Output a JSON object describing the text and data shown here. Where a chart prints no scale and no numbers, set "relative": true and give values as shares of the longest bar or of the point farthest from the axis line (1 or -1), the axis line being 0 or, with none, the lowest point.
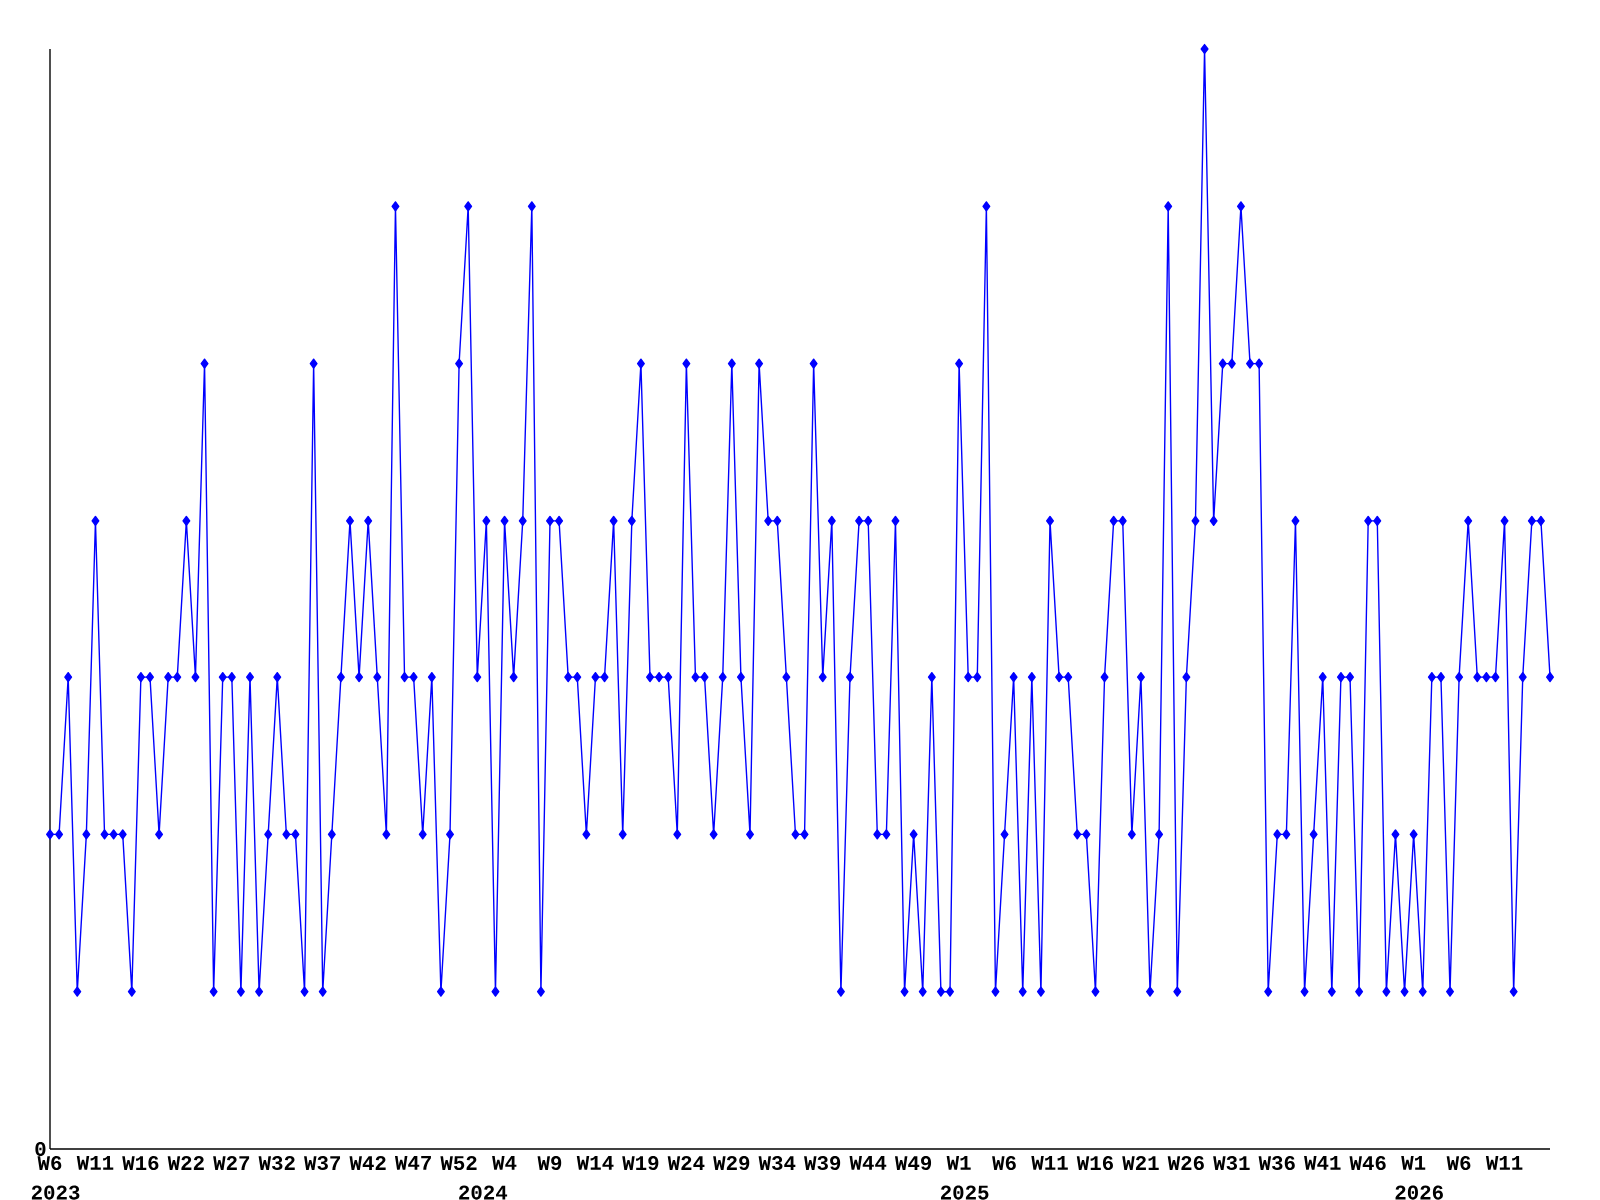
{
  "chart_data": {
    "type": "line",
    "relative": true,
    "color": "#0000ff",
    "marker": "diamond",
    "line_style": "solid",
    "grid": false,
    "categories": [
      "W6",
      null,
      null,
      null,
      null,
      "W11",
      null,
      null,
      null,
      null,
      "W16",
      null,
      null,
      null,
      null,
      "W22",
      null,
      null,
      null,
      null,
      "W27",
      null,
      null,
      null,
      null,
      "W32",
      null,
      null,
      null,
      null,
      "W37",
      null,
      null,
      null,
      null,
      "W42",
      null,
      null,
      null,
      null,
      "W47",
      null,
      null,
      null,
      null,
      "W52",
      null,
      null,
      null,
      null,
      "W4",
      null,
      null,
      null,
      null,
      "W9",
      null,
      null,
      null,
      null,
      "W14",
      null,
      null,
      null,
      null,
      "W19",
      null,
      null,
      null,
      null,
      "W24",
      null,
      null,
      null,
      null,
      "W29",
      null,
      null,
      null,
      null,
      "W34",
      null,
      null,
      null,
      null,
      "W39",
      null,
      null,
      null,
      null,
      "W44",
      null,
      null,
      null,
      null,
      "W49",
      null,
      null,
      null,
      null,
      "W1",
      null,
      null,
      null,
      null,
      "W6",
      null,
      null,
      null,
      null,
      "W11",
      null,
      null,
      null,
      null,
      "W16",
      null,
      null,
      null,
      null,
      "W21",
      null,
      null,
      null,
      null,
      "W26",
      null,
      null,
      null,
      null,
      "W31",
      null,
      null,
      null,
      null,
      "W36",
      null,
      null,
      null,
      null,
      "W41",
      null,
      null,
      null,
      null,
      "W46",
      null,
      null,
      null,
      null,
      "W1",
      null,
      null,
      null,
      null,
      "W6",
      null,
      null,
      null,
      null,
      "W11",
      null,
      null,
      null,
      null,
      null
    ],
    "values": [
      0.286,
      0.286,
      0.429,
      0.143,
      0.286,
      0.571,
      0.286,
      0.286,
      0.286,
      0.143,
      0.429,
      0.429,
      0.286,
      0.429,
      0.429,
      0.571,
      0.429,
      0.714,
      0.143,
      0.429,
      0.429,
      0.143,
      0.429,
      0.143,
      0.286,
      0.429,
      0.286,
      0.286,
      0.143,
      0.714,
      0.143,
      0.286,
      0.429,
      0.571,
      0.429,
      0.571,
      0.429,
      0.286,
      0.857,
      0.429,
      0.429,
      0.286,
      0.429,
      0.143,
      0.286,
      0.714,
      0.857,
      0.429,
      0.571,
      0.143,
      0.571,
      0.429,
      0.571,
      0.857,
      0.143,
      0.571,
      0.571,
      0.429,
      0.429,
      0.286,
      0.429,
      0.429,
      0.571,
      0.286,
      0.571,
      0.714,
      0.429,
      0.429,
      0.429,
      0.286,
      0.714,
      0.429,
      0.429,
      0.286,
      0.429,
      0.714,
      0.429,
      0.286,
      0.714,
      0.571,
      0.571,
      0.429,
      0.286,
      0.286,
      0.714,
      0.429,
      0.571,
      0.143,
      0.429,
      0.571,
      0.571,
      0.286,
      0.286,
      0.571,
      0.143,
      0.286,
      0.143,
      0.429,
      0.143,
      0.143,
      0.714,
      0.429,
      0.429,
      0.857,
      0.143,
      0.286,
      0.429,
      0.143,
      0.429,
      0.143,
      0.571,
      0.429,
      0.429,
      0.286,
      0.286,
      0.143,
      0.429,
      0.571,
      0.571,
      0.286,
      0.429,
      0.143,
      0.286,
      0.857,
      0.143,
      0.429,
      0.571,
      1,
      0.571,
      0.714,
      0.714,
      0.857,
      0.714,
      0.714,
      0.143,
      0.286,
      0.286,
      0.571,
      0.143,
      0.286,
      0.429,
      0.143,
      0.429,
      0.429,
      0.143,
      0.571,
      0.571,
      0.143,
      0.286,
      0.143,
      0.286,
      0.143,
      0.429,
      0.429,
      0.143,
      0.429,
      0.571,
      0.429,
      0.429,
      0.429,
      0.571,
      0.143,
      0.429,
      0.571,
      0.571,
      0.429
    ],
    "annotations": [
      "0",
      "2023",
      "2024",
      "2025",
      "2026"
    ]
  }
}
